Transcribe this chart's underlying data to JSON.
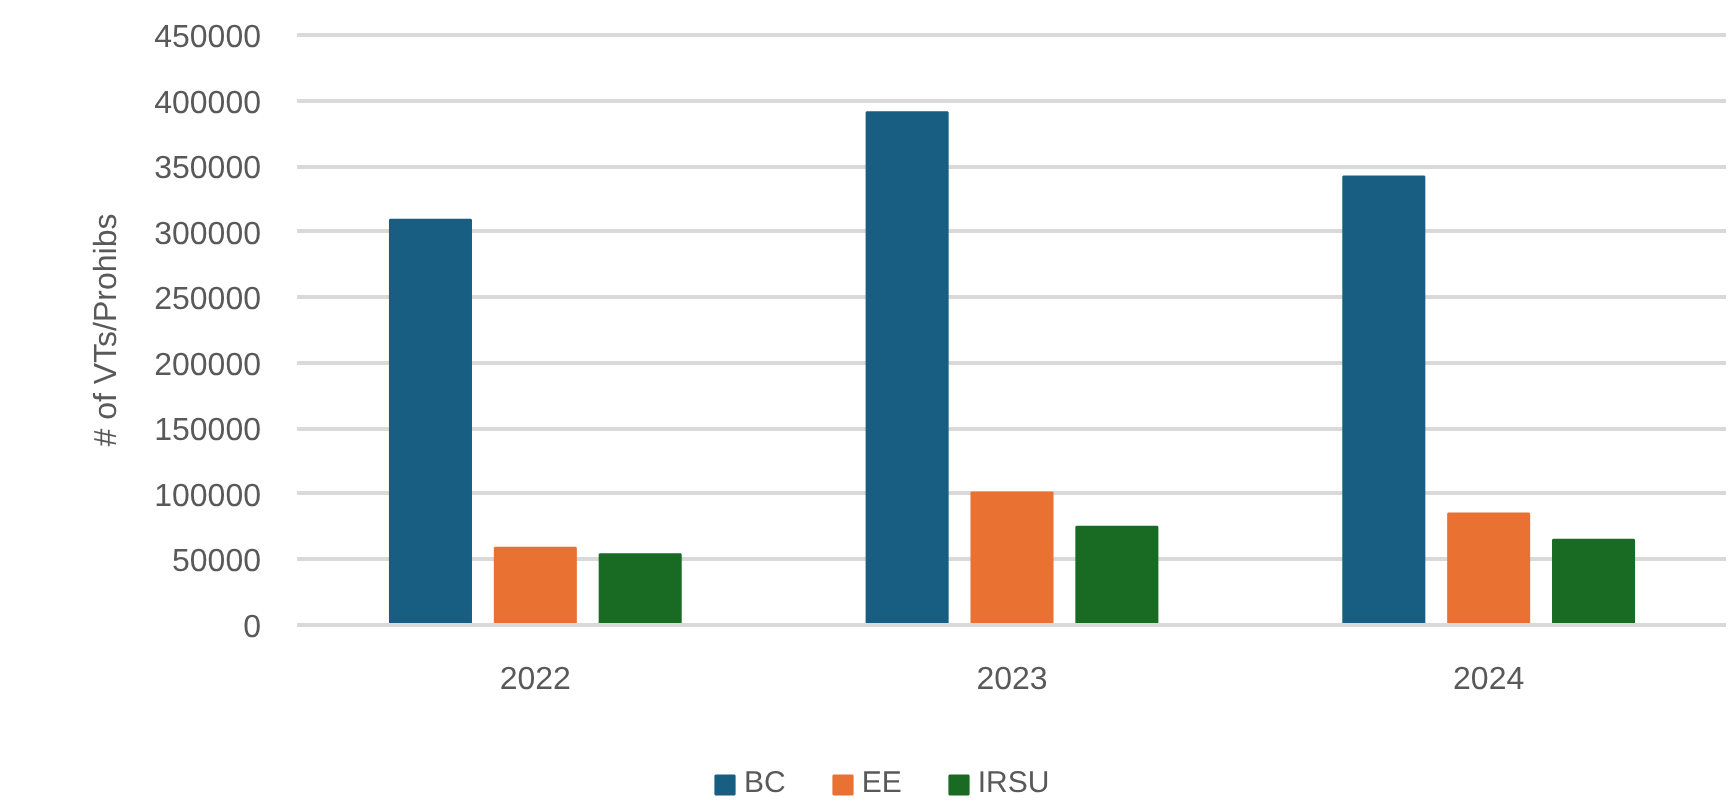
{
  "chart_data": {
    "type": "bar",
    "ylabel": "# of VTs/Prohibs",
    "categories": [
      "2022",
      "2023",
      "2024"
    ],
    "series": [
      {
        "name": "BC",
        "color": "#175e82",
        "values": [
          309000,
          391000,
          342000
        ]
      },
      {
        "name": "EE",
        "color": "#e97132",
        "values": [
          59000,
          101000,
          85000
        ]
      },
      {
        "name": "IRSU",
        "color": "#196b24",
        "values": [
          54000,
          75000,
          65000
        ]
      }
    ],
    "ylim": [
      0,
      450000
    ],
    "yticks": [
      0,
      50000,
      100000,
      150000,
      200000,
      250000,
      300000,
      350000,
      400000,
      450000
    ],
    "grid": "y",
    "legend": "bottom"
  }
}
